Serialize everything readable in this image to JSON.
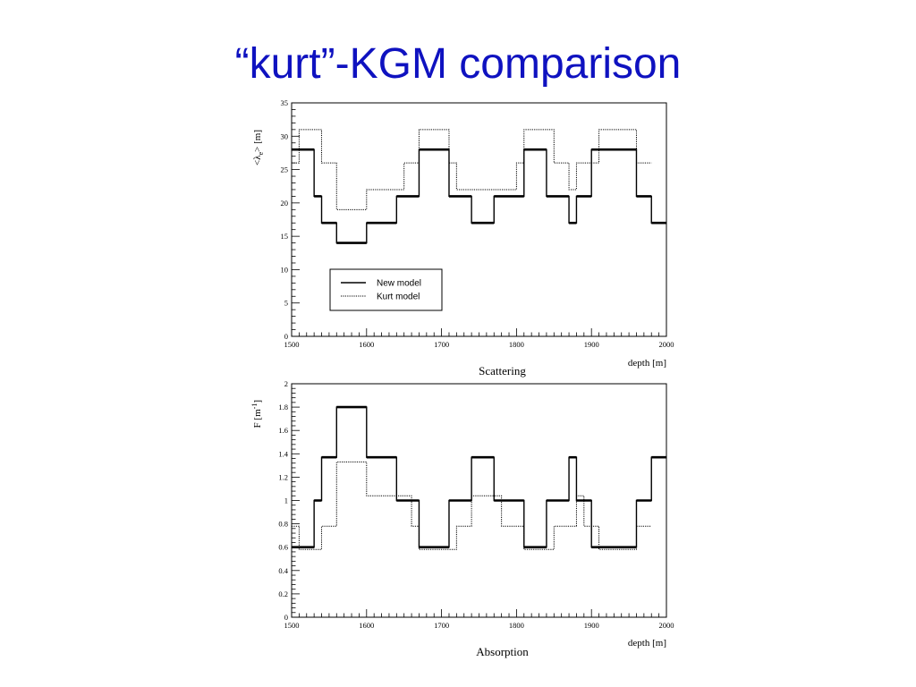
{
  "slide": {
    "title": "“kurt”-KGM comparison",
    "title_color": "#0f12c0"
  },
  "chart_data": [
    {
      "type": "line",
      "step": true,
      "caption": "Scattering",
      "xlabel": "depth [m]",
      "ylabel": "<λ",
      "ylabel_sub": "e",
      "ylabel_rest": "> [m]",
      "xlim": [
        1500,
        2000
      ],
      "ylim": [
        0,
        35
      ],
      "xticks": [
        1500,
        1600,
        1700,
        1800,
        1900,
        2000
      ],
      "yticks": [
        0,
        5,
        10,
        15,
        20,
        25,
        30,
        35
      ],
      "legend": {
        "placement": "center-left",
        "entries": [
          "New model",
          "Kurt model"
        ]
      },
      "series": [
        {
          "name": "New model",
          "style": "solid",
          "edges": [
            1500,
            1530,
            1540,
            1560,
            1600,
            1640,
            1670,
            1710,
            1740,
            1770,
            1810,
            1840,
            1870,
            1880,
            1900,
            1910,
            1960,
            1980,
            2000
          ],
          "values": [
            28,
            21,
            17,
            14,
            17,
            21,
            28,
            21,
            17,
            21,
            28,
            21,
            17,
            21,
            28,
            28,
            21,
            17
          ]
        },
        {
          "name": "Kurt model",
          "style": "dotted",
          "edges": [
            1500,
            1510,
            1520,
            1540,
            1560,
            1600,
            1650,
            1670,
            1710,
            1720,
            1770,
            1800,
            1810,
            1850,
            1870,
            1880,
            1890,
            1910,
            1950,
            1960,
            1970,
            1980
          ],
          "values": [
            26,
            31,
            31,
            26,
            19,
            22,
            26,
            31,
            26,
            22,
            22,
            26,
            31,
            26,
            22,
            26,
            26,
            31,
            31,
            26,
            26
          ]
        }
      ]
    },
    {
      "type": "line",
      "step": true,
      "caption": "Absorption",
      "xlabel": "depth [m]",
      "ylabel": "F [m",
      "ylabel_sup": "-1",
      "ylabel_rest": "]",
      "xlim": [
        1500,
        2000
      ],
      "ylim": [
        0,
        2
      ],
      "xticks": [
        1500,
        1600,
        1700,
        1800,
        1900,
        2000
      ],
      "yticks": [
        0,
        0.2,
        0.4,
        0.6,
        0.8,
        1,
        1.2,
        1.4,
        1.6,
        1.8,
        2
      ],
      "series": [
        {
          "name": "New model",
          "style": "solid",
          "edges": [
            1500,
            1530,
            1540,
            1560,
            1600,
            1640,
            1670,
            1710,
            1740,
            1770,
            1810,
            1840,
            1870,
            1880,
            1900,
            1910,
            1960,
            1980,
            2000
          ],
          "values": [
            0.6,
            1.0,
            1.37,
            1.8,
            1.37,
            1.0,
            0.6,
            1.0,
            1.37,
            1.0,
            0.6,
            1.0,
            1.37,
            1.0,
            0.6,
            0.6,
            1.0,
            1.37
          ]
        },
        {
          "name": "Kurt model",
          "style": "dotted",
          "edges": [
            1500,
            1510,
            1530,
            1540,
            1560,
            1600,
            1650,
            1660,
            1670,
            1710,
            1720,
            1740,
            1760,
            1780,
            1810,
            1850,
            1870,
            1880,
            1890,
            1910,
            1950,
            1960,
            1980
          ],
          "values": [
            0.78,
            0.58,
            0.58,
            0.78,
            1.33,
            1.04,
            1.04,
            0.78,
            0.58,
            0.58,
            0.78,
            1.04,
            1.04,
            0.78,
            0.58,
            0.78,
            0.78,
            1.04,
            0.78,
            0.58,
            0.58,
            0.78
          ]
        }
      ]
    }
  ]
}
